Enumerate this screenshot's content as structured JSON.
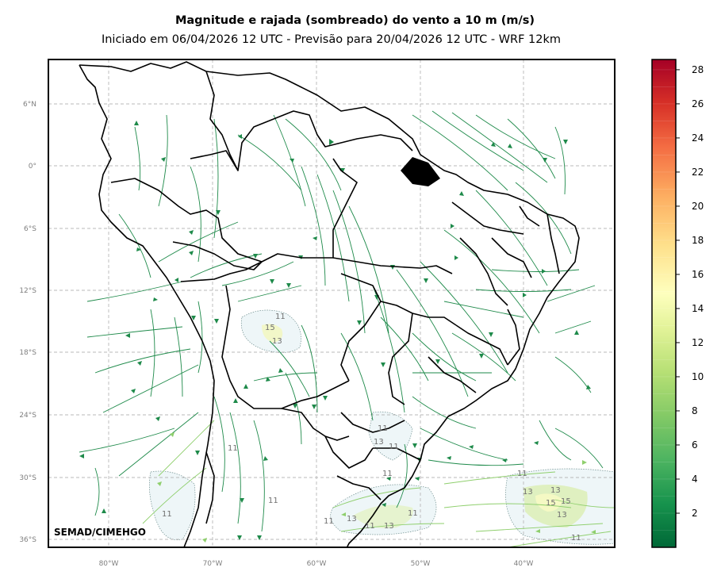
{
  "title": "Magnitude e rajada (sombreado) do vento a 10 m (m/s)",
  "subtitle": "Iniciado em 06/04/2026 12 UTC - Previsão para 20/04/2026 12 UTC - WRF 12km",
  "credit": "SEMAD/CIMEHGO",
  "lat_labels": [
    "6°N",
    "0°",
    "6°S",
    "12°S",
    "18°S",
    "24°S",
    "30°S",
    "36°S"
  ],
  "lon_labels": [
    "80°W",
    "70°W",
    "60°W",
    "50°W",
    "40°W"
  ],
  "colorbar": {
    "ticks": [
      "2",
      "4",
      "6",
      "8",
      "10",
      "12",
      "14",
      "16",
      "18",
      "20",
      "22",
      "24",
      "26",
      "28"
    ],
    "colors": [
      "#006837",
      "#17934d",
      "#4db461",
      "#84ca66",
      "#b7e075",
      "#e3f399",
      "#feffbe",
      "#fee08b",
      "#fdae61",
      "#f46d43",
      "#d73027",
      "#a50026"
    ]
  },
  "contour_labels": [
    "11",
    "15",
    "13",
    "11",
    "13",
    "11",
    "11",
    "11",
    "11",
    "11",
    "13",
    "11",
    "13",
    "11",
    "11",
    "13",
    "15",
    "15",
    "13",
    "13",
    "11",
    "11"
  ]
}
